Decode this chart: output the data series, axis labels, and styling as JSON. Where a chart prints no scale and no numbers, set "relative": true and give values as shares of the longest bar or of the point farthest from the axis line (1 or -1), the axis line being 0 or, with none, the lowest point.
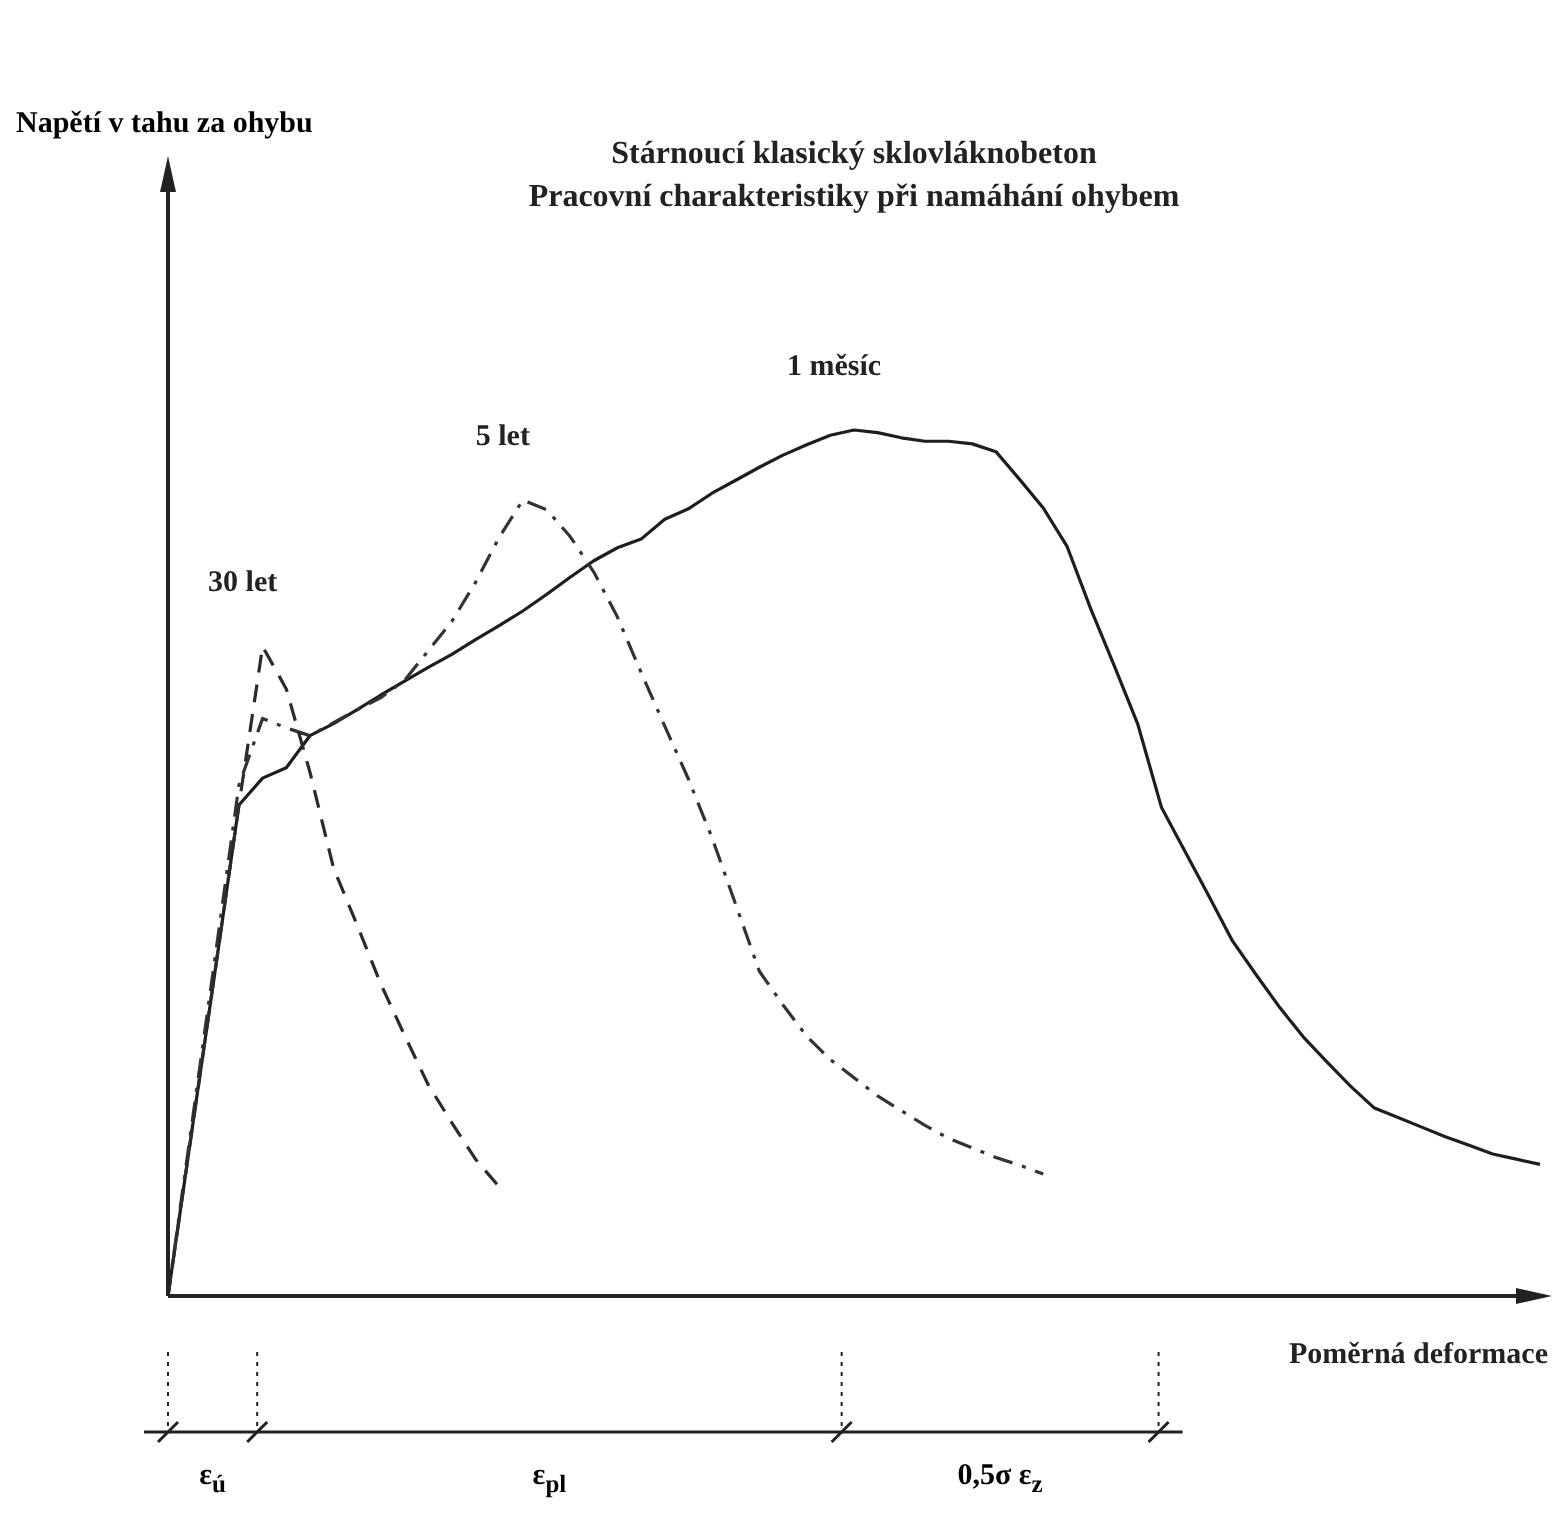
{
  "chart_data": {
    "type": "line",
    "title": "Stárnoucí klasický sklovláknobeton",
    "subtitle": "Pracovní charakteristiky při namáhání ohybem",
    "xlabel": "Poměrná deformace",
    "relative": true,
    "legend": false,
    "categories": [
      null,
      null,
      null,
      null,
      null,
      null,
      null,
      null,
      null,
      null,
      null,
      null,
      null,
      null,
      null,
      null,
      null,
      null,
      null,
      null,
      null,
      null,
      null,
      null,
      null,
      null,
      null,
      null,
      null,
      null,
      null,
      null,
      null,
      null,
      null,
      null,
      null,
      null,
      null,
      null,
      null,
      null,
      null,
      null,
      null,
      null,
      null,
      null,
      null,
      null,
      null,
      null,
      null,
      null,
      null,
      null,
      null,
      null,
      null
    ],
    "series": [
      {
        "name": "30 let",
        "color": "#2b2b2b",
        "line_style": "dashed",
        "values": [
          0,
          0.189,
          0.377,
          0.567,
          0.75,
          0.701,
          0.605,
          0.494,
          0.428,
          0.36,
          0.301,
          0.244,
          0.2,
          0.158,
          0.126,
          null,
          null,
          null,
          null,
          null,
          null,
          null,
          null,
          null,
          null,
          null,
          null,
          null,
          null,
          null,
          null,
          null,
          null,
          null,
          null,
          null,
          null,
          null,
          null,
          null,
          null,
          null,
          null,
          null,
          null,
          null,
          null,
          null,
          null,
          null,
          null,
          null,
          null,
          null,
          null,
          null,
          null,
          null,
          null
        ]
      },
      {
        "name": "5 let",
        "color": "#333333",
        "line_style": "dashdot",
        "values": [
          0,
          0.197,
          0.393,
          0.59,
          0.667,
          0.656,
          0.647,
          0.662,
          0.677,
          0.691,
          0.711,
          0.745,
          0.779,
          0.824,
          0.876,
          0.919,
          0.908,
          0.877,
          0.836,
          0.784,
          0.72,
          0.658,
          0.597,
          0.529,
          0.452,
          0.375,
          0.336,
          0.3,
          0.273,
          0.252,
          0.231,
          0.214,
          0.197,
          0.182,
          0.171,
          0.16,
          0.151,
          0.141,
          null,
          null,
          null,
          null,
          null,
          null,
          null,
          null,
          null,
          null,
          null,
          null,
          null,
          null,
          null,
          null,
          null,
          null,
          null,
          null,
          null
        ]
      },
      {
        "name": "1 měsíc",
        "color": "#1e1e1e",
        "line_style": "solid",
        "values": [
          0,
          0.189,
          0.377,
          0.567,
          0.598,
          0.61,
          0.647,
          0.661,
          0.677,
          0.694,
          0.71,
          0.726,
          0.741,
          0.758,
          0.774,
          0.791,
          0.81,
          0.83,
          0.849,
          0.864,
          0.874,
          0.897,
          0.909,
          0.927,
          0.942,
          0.957,
          0.971,
          0.983,
          0.994,
          1,
          0.997,
          0.991,
          0.987,
          0.987,
          0.984,
          0.975,
          0.943,
          0.91,
          0.866,
          0.794,
          0.728,
          0.66,
          0.564,
          0.513,
          0.462,
          0.41,
          0.371,
          0.333,
          0.299,
          0.27,
          0.242,
          0.217,
          0.206,
          0.195,
          0.184,
          0.174,
          0.164,
          0.158,
          0.152
        ]
      }
    ],
    "annotations": [
      "Napětí v tahu za ohybu",
      "ε$_{ú}$",
      "ε$_{pl}$",
      "0,5σ ε$_{z}$"
    ]
  }
}
